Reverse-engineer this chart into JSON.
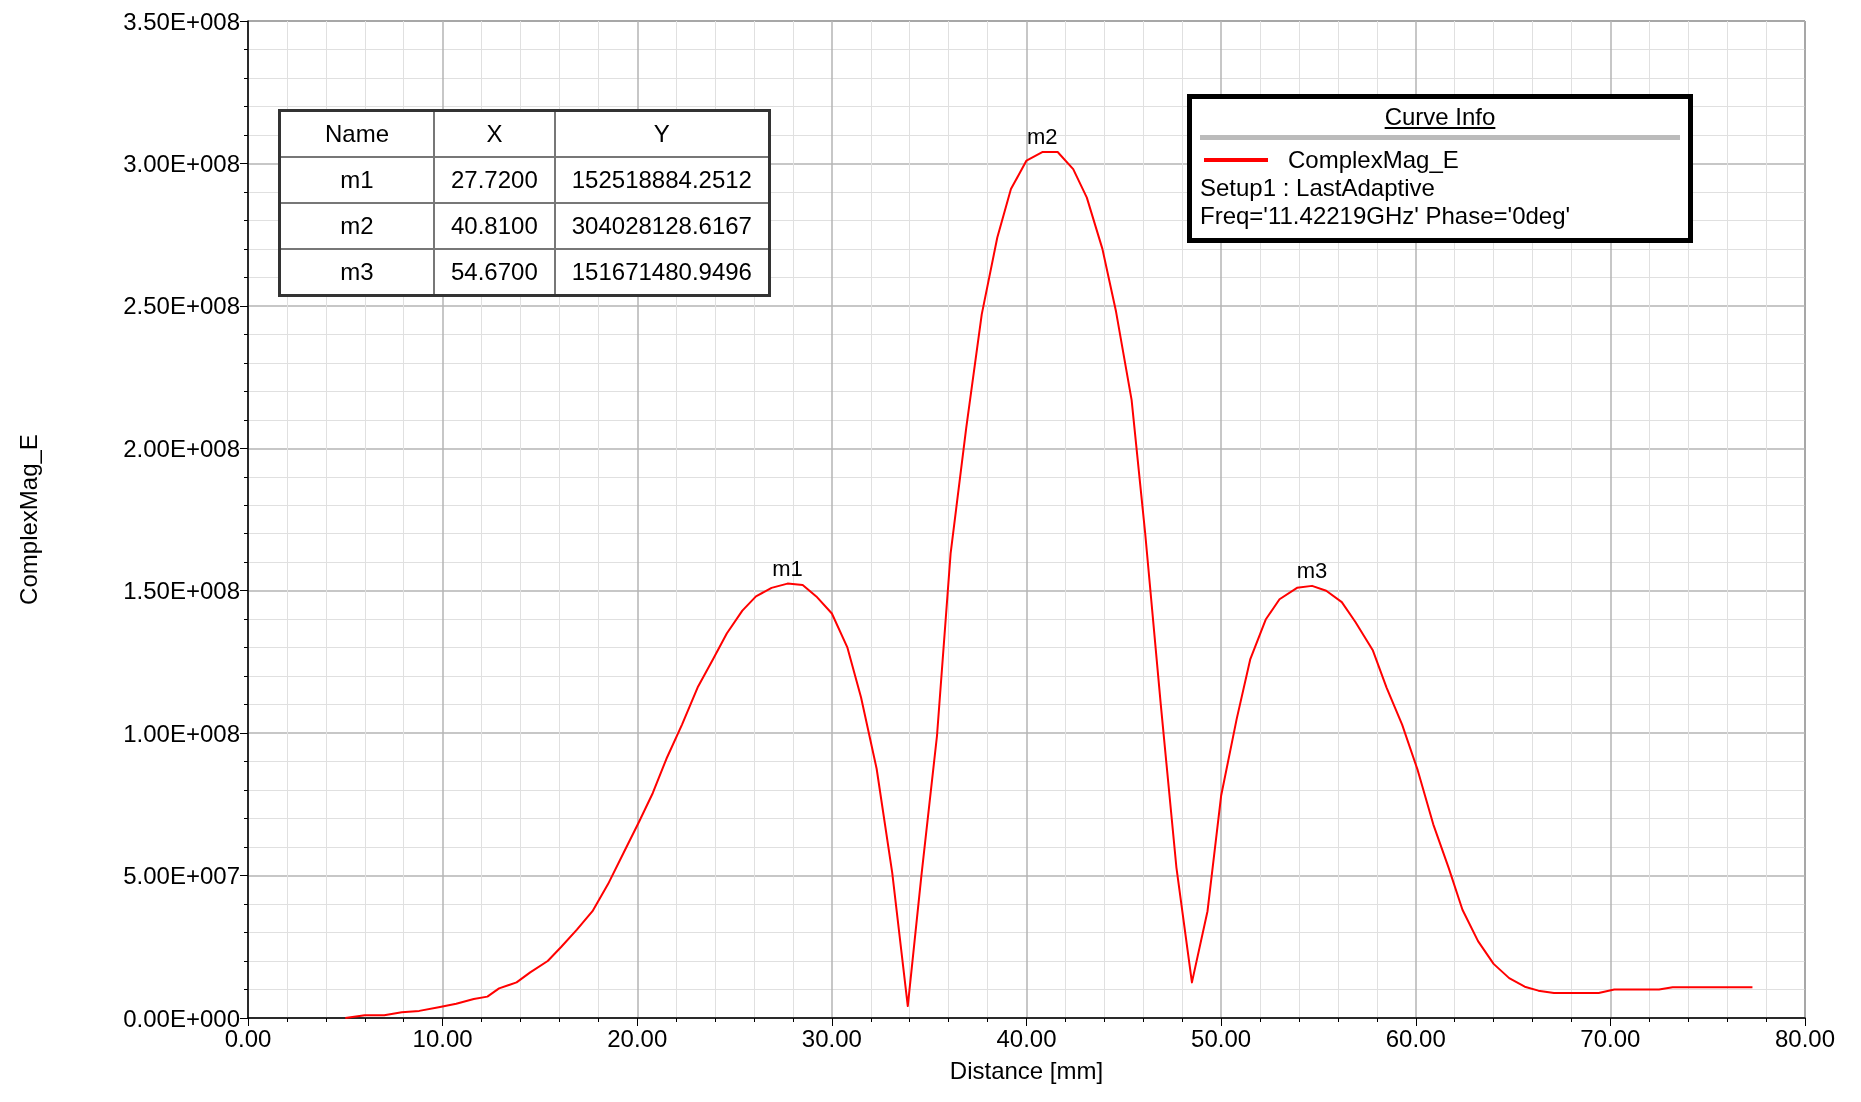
{
  "chart_data": {
    "type": "line",
    "xlabel": "Distance [mm]",
    "ylabel": "ComplexMag_E",
    "legend_title": "Curve Info",
    "legend": "top right",
    "grid": true,
    "marker": "none",
    "line_style": "solid",
    "xlim": [
      0,
      80
    ],
    "xticks": [
      {
        "value": 0,
        "label": "0.00"
      },
      {
        "value": 10,
        "label": "10.00"
      },
      {
        "value": 20,
        "label": "20.00"
      },
      {
        "value": 30,
        "label": "30.00"
      },
      {
        "value": 40,
        "label": "40.00"
      },
      {
        "value": 50,
        "label": "50.00"
      },
      {
        "value": 60,
        "label": "60.00"
      },
      {
        "value": 70,
        "label": "70.00"
      },
      {
        "value": 80,
        "label": "80.00"
      }
    ],
    "ylim": [
      0,
      350000000
    ],
    "yticks": [
      {
        "value": 0,
        "label": "0.00E+000"
      },
      {
        "value": 50000000,
        "label": "5.00E+007"
      },
      {
        "value": 100000000,
        "label": "1.00E+008"
      },
      {
        "value": 150000000,
        "label": "1.50E+008"
      },
      {
        "value": 200000000,
        "label": "2.00E+008"
      },
      {
        "value": 250000000,
        "label": "2.50E+008"
      },
      {
        "value": 300000000,
        "label": "3.00E+008"
      },
      {
        "value": 350000000,
        "label": "3.50E+008"
      }
    ],
    "series": [
      {
        "name": "ComplexMag_E",
        "color": "#ff0000",
        "x": [
          5.0,
          6.0,
          7.0,
          7.9,
          8.8,
          9.8,
          10.7,
          11.6,
          12.3,
          12.9,
          13.8,
          14.5,
          15.4,
          16.1,
          16.9,
          17.7,
          18.5,
          19.3,
          20.1,
          20.8,
          21.5,
          22.3,
          23.1,
          23.9,
          24.6,
          25.4,
          26.1,
          26.9,
          27.72,
          28.5,
          29.2,
          30.0,
          30.8,
          31.5,
          32.3,
          33.1,
          33.9,
          34.6,
          35.4,
          36.1,
          36.9,
          37.7,
          38.5,
          39.2,
          40.0,
          40.81,
          41.6,
          42.4,
          43.1,
          43.9,
          44.6,
          45.4,
          46.1,
          46.9,
          47.7,
          48.5,
          49.3,
          50.0,
          50.8,
          51.5,
          52.3,
          53.0,
          53.9,
          54.67,
          55.4,
          56.2,
          56.9,
          57.8,
          58.5,
          59.3,
          60.1,
          60.9,
          61.7,
          62.4,
          63.2,
          64.0,
          64.8,
          65.6,
          66.3,
          67.1,
          69.4,
          70.2,
          72.5,
          73.2,
          77.3
        ],
        "values": [
          0,
          1000000,
          1000000,
          2000000,
          2500000,
          3800000,
          5000000,
          6700000,
          7500000,
          10400000,
          12500000,
          16000000,
          20000000,
          25000000,
          31000000,
          37500000,
          47000000,
          58000000,
          69000000,
          79000000,
          91000000,
          103000000,
          116000000,
          126000000,
          135000000,
          143000000,
          148000000,
          151000000,
          152500000,
          152000000,
          148000000,
          142000000,
          130000000,
          112500000,
          87500000,
          51000000,
          4200000,
          50000000,
          99000000,
          163000000,
          207000000,
          247000000,
          274000000,
          291000000,
          301000000,
          304000000,
          304000000,
          298000000,
          288000000,
          270000000,
          248000000,
          217000000,
          170000000,
          110000000,
          53000000,
          12500000,
          37500000,
          78000000,
          105000000,
          126000000,
          140000000,
          147000000,
          151000000,
          151700000,
          150000000,
          146000000,
          139000000,
          129000000,
          116000000,
          103000000,
          87000000,
          68000000,
          52500000,
          38000000,
          27000000,
          19000000,
          14000000,
          11000000,
          9600000,
          8800000,
          8800000,
          10000000,
          10000000,
          10800000,
          10800000
        ]
      }
    ],
    "annotations": [
      {
        "text": "m1",
        "x": 27.72,
        "y": 152518884.2512
      },
      {
        "text": "m2",
        "x": 40.81,
        "y": 304028128.6167
      },
      {
        "text": "m3",
        "x": 54.67,
        "y": 151671480.9496
      },
      "Setup1 : LastAdaptive",
      "Freq='11.42219GHz' Phase='0deg'",
      "Name",
      "X",
      "Y",
      "m1",
      "27.7200",
      "152518884.2512",
      "m2",
      "40.8100",
      "304028128.6167",
      "m3",
      "54.6700",
      "151671480.9496"
    ]
  }
}
